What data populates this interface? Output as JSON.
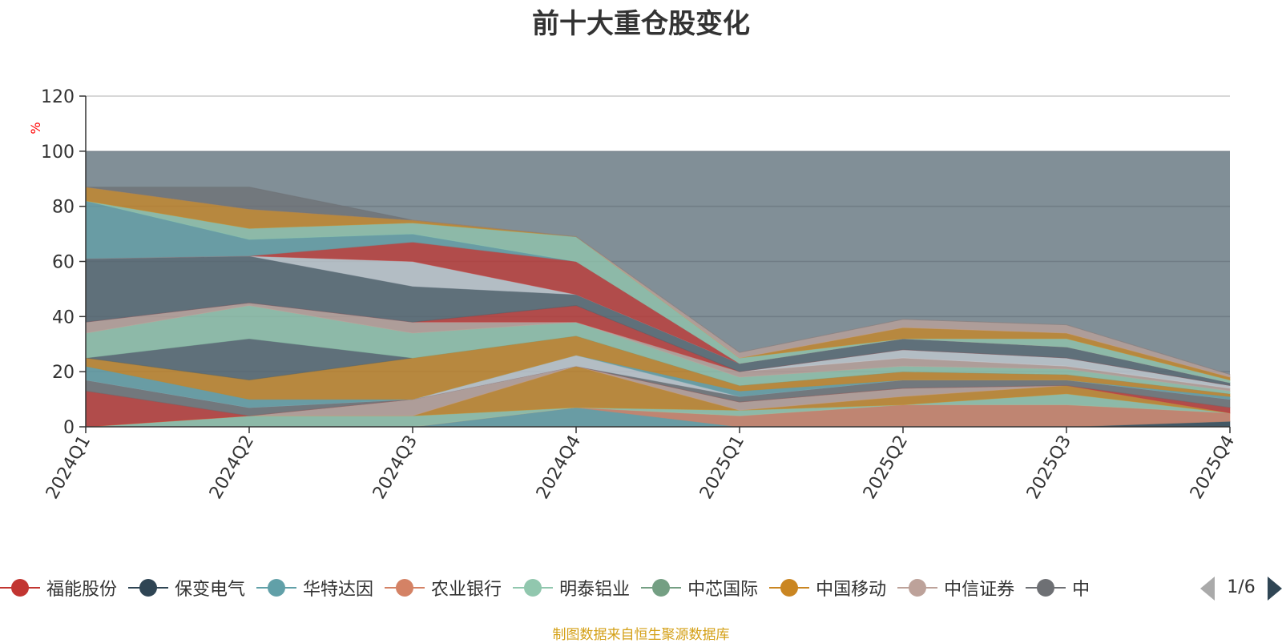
{
  "chart_data": {
    "type": "area",
    "title": "前十大重仓股变化",
    "ylabel": "%",
    "ylim": [
      0,
      120
    ],
    "yticks": [
      0,
      20,
      40,
      60,
      80,
      100,
      120
    ],
    "categories": [
      "2024Q1",
      "2024Q2",
      "2024Q3",
      "2024Q4",
      "2025Q1",
      "2025Q2",
      "2025Q3",
      "2025Q4"
    ],
    "stacked": true,
    "grid": true,
    "legend_position": "bottom",
    "background_total": 100,
    "background_color": "#818f97",
    "series": [
      {
        "name": "保变电气",
        "color": "#2f4554",
        "values": [
          0,
          0,
          0,
          0,
          0,
          0,
          0,
          2
        ]
      },
      {
        "name": "华特达因",
        "color": "#61a0a8",
        "values": [
          0,
          0,
          0,
          7,
          0,
          0,
          0,
          0
        ]
      },
      {
        "name": "农业银行",
        "color": "#d48265",
        "values": [
          0,
          0,
          0,
          0,
          4,
          8,
          8,
          3
        ]
      },
      {
        "name": "明泰铝业",
        "color": "#91c7ae",
        "values": [
          0,
          4,
          4,
          0,
          2,
          0,
          4,
          0
        ]
      },
      {
        "name": "中国移动",
        "color": "#ca8622",
        "values": [
          0,
          0,
          0,
          15,
          0,
          3,
          3,
          0
        ]
      },
      {
        "name": "中信证券",
        "color": "#bda29a",
        "values": [
          0,
          0,
          6,
          0,
          3,
          3,
          0,
          0
        ]
      },
      {
        "name": "福能股份",
        "color": "#c23531",
        "values": [
          13,
          0,
          0,
          0,
          0,
          0,
          0,
          2
        ]
      },
      {
        "name": "",
        "color": "#6e7074",
        "values": [
          4,
          3,
          0,
          0,
          2,
          3,
          2,
          3
        ]
      },
      {
        "name": "",
        "color": "#546570",
        "values": [
          0,
          0,
          0,
          0,
          0,
          0,
          0,
          0
        ]
      },
      {
        "name": "",
        "color": "#c4ccd3",
        "values": [
          0,
          0,
          0,
          4,
          0,
          0,
          0,
          0
        ]
      },
      {
        "name": "",
        "color": "#61a0a8",
        "values": [
          5,
          3,
          0,
          0,
          2,
          0,
          0,
          1
        ]
      },
      {
        "name": "",
        "color": "#ca8622",
        "values": [
          3,
          7,
          15,
          7,
          2,
          3,
          2,
          1
        ]
      },
      {
        "name": "",
        "color": "#546570",
        "values": [
          0,
          15,
          0,
          0,
          0,
          0,
          0,
          0
        ]
      },
      {
        "name": "",
        "color": "#91c7ae",
        "values": [
          9,
          12,
          9,
          5,
          3,
          2,
          2,
          1
        ]
      },
      {
        "name": "",
        "color": "#bda29a",
        "values": [
          4,
          1,
          4,
          0,
          2,
          3,
          1,
          1
        ]
      },
      {
        "name": "",
        "color": "#c4ccd3",
        "values": [
          0,
          0,
          0,
          0,
          0,
          3,
          3,
          1
        ]
      },
      {
        "name": "",
        "color": "#c23531",
        "values": [
          0,
          0,
          0,
          6,
          0,
          0,
          0,
          0
        ]
      },
      {
        "name": "",
        "color": "#546570",
        "values": [
          23,
          17,
          13,
          4,
          3,
          4,
          4,
          1
        ]
      },
      {
        "name": "",
        "color": "#c4ccd3",
        "values": [
          0,
          0,
          9,
          0,
          0,
          0,
          0,
          0
        ]
      },
      {
        "name": "",
        "color": "#c23531",
        "values": [
          0,
          0,
          7,
          12,
          0,
          0,
          0,
          0
        ]
      },
      {
        "name": "",
        "color": "#61a0a8",
        "values": [
          21,
          6,
          3,
          0,
          0,
          0,
          0,
          0
        ]
      },
      {
        "name": "",
        "color": "#91c7ae",
        "values": [
          0,
          4,
          4,
          9,
          2,
          0,
          3,
          1
        ]
      },
      {
        "name": "",
        "color": "#ca8622",
        "values": [
          5,
          7,
          1,
          0,
          0,
          4,
          2,
          1
        ]
      },
      {
        "name": "",
        "color": "#bda29a",
        "values": [
          0,
          0,
          0,
          0,
          2,
          3,
          3,
          1
        ]
      },
      {
        "name": "",
        "color": "#6e7074",
        "values": [
          0,
          8,
          0,
          0,
          0,
          0,
          0,
          0
        ]
      }
    ]
  },
  "legend": {
    "items": [
      {
        "name": "福能股份",
        "color": "#c23531"
      },
      {
        "name": "保变电气",
        "color": "#2f4554"
      },
      {
        "name": "华特达因",
        "color": "#61a0a8"
      },
      {
        "name": "农业银行",
        "color": "#d48265"
      },
      {
        "name": "明泰铝业",
        "color": "#91c7ae"
      },
      {
        "name": "中芯国际",
        "color": "#749f83"
      },
      {
        "name": "中国移动",
        "color": "#ca8622"
      },
      {
        "name": "中信证券",
        "color": "#bda29a"
      },
      {
        "name": "中",
        "color": "#6e7074"
      }
    ],
    "page_indicator": "1/6",
    "prev_icon": "triangle-left-icon",
    "next_icon": "triangle-right-icon"
  },
  "source_note": "制图数据来自恒生聚源数据库",
  "colors": {
    "axis": "#333333",
    "grid": "#cccccc",
    "unit_label": "#ff0000",
    "source_note": "#d4a017",
    "pager_active": "#2f4554",
    "pager_inactive": "#aaaaaa"
  }
}
